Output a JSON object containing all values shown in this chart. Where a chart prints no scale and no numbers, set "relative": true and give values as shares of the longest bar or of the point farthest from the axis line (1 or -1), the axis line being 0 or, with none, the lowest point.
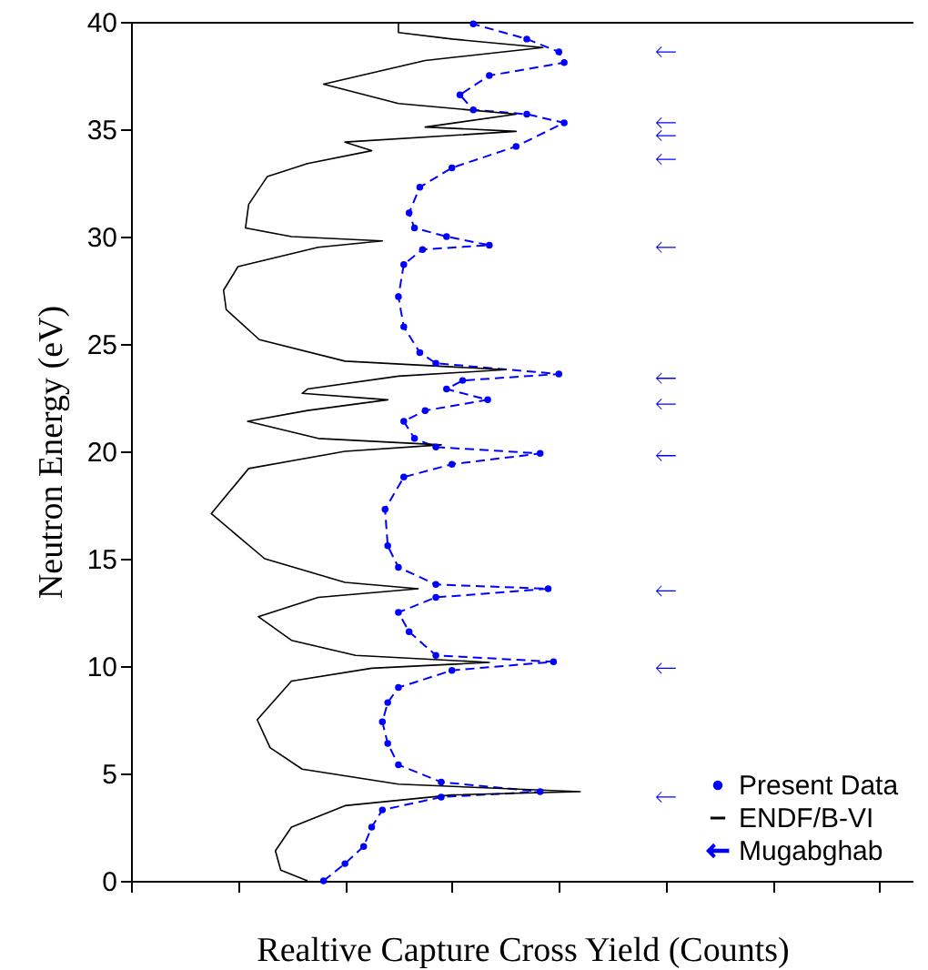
{
  "chart_data": {
    "type": "line",
    "orientation": "horizontal",
    "relative": true,
    "xlabel": "Realtive Capture Cross Yield (Counts)",
    "ylabel": "Neutron Energy (eV)",
    "ylim": [
      0,
      40
    ],
    "yticks": [
      0,
      5,
      10,
      15,
      20,
      25,
      30,
      35,
      40
    ],
    "tick_labels": "y",
    "legend": "bottom right",
    "grid": false,
    "series": [
      {
        "name": "Present Data",
        "color": "#0000ff",
        "marker": "circle",
        "line_style": "dashed",
        "x": [
          0,
          0.8,
          1.6,
          2.5,
          3.3,
          3.9,
          4.15,
          4.6,
          5.4,
          6.4,
          7.4,
          8.3,
          9.0,
          9.8,
          10.2,
          10.5,
          11.6,
          12.5,
          13.2,
          13.6,
          13.8,
          14.6,
          15.6,
          17.3,
          18.8,
          19.4,
          19.9,
          20.2,
          20.6,
          21.4,
          21.9,
          22.4,
          22.9,
          23.3,
          23.6,
          24.1,
          24.6,
          25.8,
          27.2,
          28.7,
          29.4,
          29.6,
          30.0,
          30.4,
          31.1,
          32.3,
          33.2,
          34.2,
          35.3,
          35.7,
          35.9,
          36.6,
          37.5,
          38.1,
          38.6,
          39.2,
          39.9
        ],
        "values": [
          0.36,
          0.4,
          0.435,
          0.45,
          0.47,
          0.58,
          0.765,
          0.58,
          0.5,
          0.48,
          0.47,
          0.48,
          0.5,
          0.6,
          0.79,
          0.57,
          0.52,
          0.5,
          0.57,
          0.78,
          0.57,
          0.5,
          0.48,
          0.475,
          0.51,
          0.6,
          0.765,
          0.57,
          0.53,
          0.51,
          0.55,
          0.667,
          0.59,
          0.62,
          0.8,
          0.57,
          0.54,
          0.51,
          0.5,
          0.51,
          0.545,
          0.67,
          0.59,
          0.53,
          0.52,
          0.54,
          0.6,
          0.72,
          0.81,
          0.74,
          0.64,
          0.615,
          0.67,
          0.81,
          0.8,
          0.74,
          0.64
        ]
      },
      {
        "name": "ENDF/B-VI",
        "color": "#000000",
        "marker": "none",
        "line_style": "solid",
        "x": [
          0,
          0.5,
          1.4,
          2.5,
          3.5,
          4.0,
          4.15,
          4.5,
          5.2,
          6.2,
          7.5,
          9.3,
          9.9,
          10.17,
          10.5,
          11.2,
          12.3,
          13.2,
          13.6,
          13.9,
          15,
          17.1,
          19.2,
          20.0,
          20.3,
          20.6,
          21.4,
          21.9,
          22.4,
          22.7,
          22.9,
          23.5,
          23.8,
          24.2,
          25.2,
          26.6,
          27.5,
          28.6,
          29.5,
          29.8,
          30.0,
          30.4,
          31.5,
          32.8,
          33.4,
          34.0,
          34.4,
          34.9,
          35.1,
          35.7,
          36.2,
          37.1,
          38.2,
          38.8,
          39.2,
          39.5,
          40
        ],
        "values": [
          0.33,
          0.28,
          0.27,
          0.3,
          0.4,
          0.6,
          0.84,
          0.5,
          0.32,
          0.26,
          0.236,
          0.3,
          0.45,
          0.67,
          0.42,
          0.3,
          0.238,
          0.35,
          0.537,
          0.4,
          0.25,
          0.15,
          0.22,
          0.4,
          0.58,
          0.35,
          0.218,
          0.33,
          0.48,
          0.32,
          0.33,
          0.5,
          0.7,
          0.4,
          0.24,
          0.178,
          0.173,
          0.2,
          0.35,
          0.47,
          0.3,
          0.214,
          0.22,
          0.255,
          0.33,
          0.45,
          0.4,
          0.72,
          0.55,
          0.72,
          0.5,
          0.36,
          0.55,
          0.77,
          0.6,
          0.5,
          0.5
        ]
      },
      {
        "name": "Mugabghab",
        "type": "scatter",
        "color": "#0000ff",
        "x": [
          3.9,
          9.9,
          13.5,
          19.8,
          22.2,
          23.4,
          29.5,
          33.6,
          34.7,
          35.3,
          38.6
        ],
        "values": [
          1,
          1,
          1,
          1,
          1,
          1,
          1,
          1,
          1,
          1,
          1
        ]
      }
    ]
  }
}
